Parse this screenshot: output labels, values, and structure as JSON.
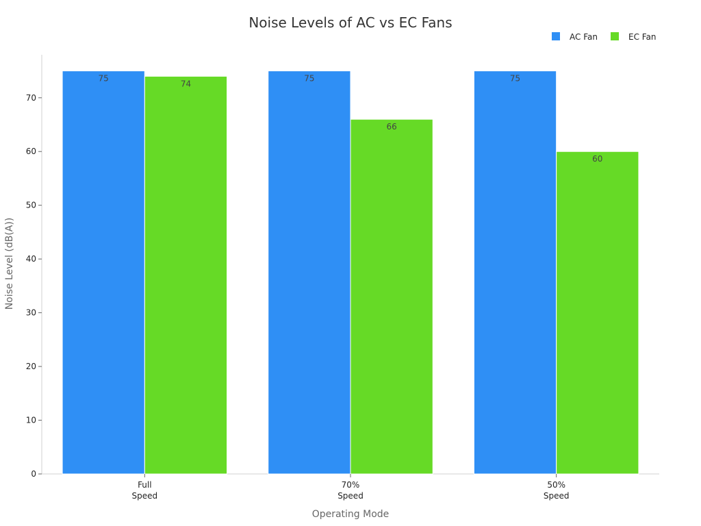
{
  "chart_data": {
    "type": "bar",
    "title": "Noise Levels of AC vs EC Fans",
    "xlabel": "Operating Mode",
    "ylabel": "Noise Level (dB(A))",
    "categories": [
      [
        "Full",
        "Speed"
      ],
      [
        "70%",
        "Speed"
      ],
      [
        "50%",
        "Speed"
      ]
    ],
    "series": [
      {
        "name": "AC Fan",
        "color": "#2f8ff5",
        "values": [
          75,
          75,
          75
        ]
      },
      {
        "name": "EC Fan",
        "color": "#66da26",
        "values": [
          74,
          66,
          60
        ]
      }
    ],
    "ylim": [
      0,
      78
    ],
    "yticks": [
      0,
      10,
      20,
      30,
      40,
      50,
      60,
      70
    ],
    "grid": false,
    "legend_position": "top-right"
  }
}
